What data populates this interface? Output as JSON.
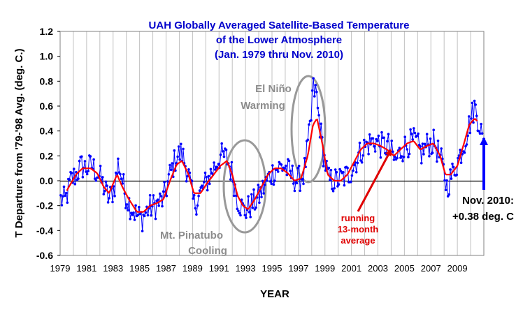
{
  "chart_data": {
    "type": "line",
    "title_lines": [
      "UAH Globally Averaged Satellite-Based Temperature",
      "of the Lower Atmosphere",
      "(Jan. 1979  thru Nov. 2010)"
    ],
    "xlabel": "YEAR",
    "ylabel": "T Departure from '79-'98 Avg. (deg. C.)",
    "ylim": [
      -0.6,
      1.2
    ],
    "yticks": [
      "-0.6",
      "-0.4",
      "-0.2",
      "0.0",
      "0.2",
      "0.4",
      "0.6",
      "0.8",
      "1.0",
      "1.2"
    ],
    "xlim": [
      1979,
      2011
    ],
    "xticks": [
      "1979",
      "1981",
      "1983",
      "1985",
      "1987",
      "1989",
      "1991",
      "1993",
      "1995",
      "1997",
      "1999",
      "2001",
      "2003",
      "2005",
      "2007",
      "2009"
    ],
    "grid": "vertical",
    "series": [
      {
        "type": "monthly",
        "color": "#0000ff",
        "start": "1979-01",
        "keyframes": [
          [
            1979.0,
            -0.15
          ],
          [
            1979.4,
            -0.16
          ],
          [
            1979.8,
            0.0
          ],
          [
            1980.2,
            0.05
          ],
          [
            1980.6,
            0.12
          ],
          [
            1981.0,
            0.1
          ],
          [
            1981.4,
            0.12
          ],
          [
            1981.9,
            0.05
          ],
          [
            1982.3,
            -0.05
          ],
          [
            1982.7,
            -0.15
          ],
          [
            1983.1,
            -0.05
          ],
          [
            1983.4,
            0.15
          ],
          [
            1983.9,
            -0.1
          ],
          [
            1984.3,
            -0.2
          ],
          [
            1984.8,
            -0.28
          ],
          [
            1985.2,
            -0.3
          ],
          [
            1985.7,
            -0.22
          ],
          [
            1986.2,
            -0.2
          ],
          [
            1986.8,
            -0.15
          ],
          [
            1987.3,
            0.05
          ],
          [
            1987.8,
            0.2
          ],
          [
            1988.2,
            0.22
          ],
          [
            1988.7,
            0.05
          ],
          [
            1989.1,
            -0.2
          ],
          [
            1989.6,
            -0.1
          ],
          [
            1990.1,
            0.0
          ],
          [
            1990.6,
            0.1
          ],
          [
            1991.1,
            0.2
          ],
          [
            1991.6,
            0.18
          ],
          [
            1992.0,
            0.05
          ],
          [
            1992.4,
            -0.15
          ],
          [
            1992.9,
            -0.25
          ],
          [
            1993.4,
            -0.2
          ],
          [
            1993.9,
            -0.15
          ],
          [
            1994.4,
            -0.05
          ],
          [
            1994.9,
            0.05
          ],
          [
            1995.4,
            0.1
          ],
          [
            1995.9,
            0.12
          ],
          [
            1996.4,
            0.05
          ],
          [
            1996.9,
            0.0
          ],
          [
            1997.4,
            0.05
          ],
          [
            1997.8,
            0.35
          ],
          [
            1998.1,
            0.62
          ],
          [
            1998.5,
            0.55
          ],
          [
            1998.9,
            0.2
          ],
          [
            1999.3,
            0.0
          ],
          [
            1999.8,
            0.0
          ],
          [
            2000.3,
            0.02
          ],
          [
            2000.8,
            0.05
          ],
          [
            2001.3,
            0.15
          ],
          [
            2001.8,
            0.25
          ],
          [
            2002.3,
            0.3
          ],
          [
            2002.8,
            0.32
          ],
          [
            2003.3,
            0.28
          ],
          [
            2003.8,
            0.28
          ],
          [
            2004.3,
            0.15
          ],
          [
            2004.8,
            0.25
          ],
          [
            2005.3,
            0.3
          ],
          [
            2005.8,
            0.32
          ],
          [
            2006.3,
            0.22
          ],
          [
            2006.8,
            0.3
          ],
          [
            2007.3,
            0.3
          ],
          [
            2007.8,
            0.15
          ],
          [
            2008.2,
            -0.05
          ],
          [
            2008.6,
            0.05
          ],
          [
            2009.0,
            0.15
          ],
          [
            2009.5,
            0.3
          ],
          [
            2009.9,
            0.45
          ],
          [
            2010.3,
            0.6
          ],
          [
            2010.7,
            0.45
          ],
          [
            2010.87,
            0.38
          ]
        ]
      },
      {
        "type": "running_mean",
        "window_months": 13,
        "color": "#ff0000",
        "keyframes": [
          [
            1979.5,
            -0.08
          ],
          [
            1980.2,
            0.05
          ],
          [
            1980.7,
            0.1
          ],
          [
            1981.3,
            0.1
          ],
          [
            1981.8,
            0.06
          ],
          [
            1982.3,
            -0.05
          ],
          [
            1982.7,
            -0.1
          ],
          [
            1983.3,
            0.05
          ],
          [
            1983.7,
            -0.05
          ],
          [
            1984.2,
            -0.15
          ],
          [
            1984.8,
            -0.25
          ],
          [
            1985.3,
            -0.25
          ],
          [
            1985.8,
            -0.2
          ],
          [
            1986.3,
            -0.18
          ],
          [
            1986.8,
            -0.15
          ],
          [
            1987.3,
            0.0
          ],
          [
            1987.8,
            0.13
          ],
          [
            1988.2,
            0.16
          ],
          [
            1988.7,
            0.05
          ],
          [
            1989.1,
            -0.1
          ],
          [
            1989.6,
            -0.1
          ],
          [
            1990.1,
            -0.02
          ],
          [
            1990.6,
            0.05
          ],
          [
            1991.1,
            0.12
          ],
          [
            1991.6,
            0.16
          ],
          [
            1992.0,
            0.05
          ],
          [
            1992.4,
            -0.12
          ],
          [
            1992.8,
            -0.2
          ],
          [
            1993.2,
            -0.23
          ],
          [
            1993.7,
            -0.15
          ],
          [
            1994.2,
            -0.05
          ],
          [
            1994.7,
            0.05
          ],
          [
            1995.2,
            0.1
          ],
          [
            1995.7,
            0.1
          ],
          [
            1996.2,
            0.06
          ],
          [
            1996.7,
            0.0
          ],
          [
            1997.2,
            0.02
          ],
          [
            1997.7,
            0.2
          ],
          [
            1998.1,
            0.45
          ],
          [
            1998.4,
            0.5
          ],
          [
            1998.8,
            0.3
          ],
          [
            1999.2,
            0.05
          ],
          [
            1999.7,
            0.0
          ],
          [
            2000.2,
            0.0
          ],
          [
            2000.7,
            0.05
          ],
          [
            2001.2,
            0.15
          ],
          [
            2001.7,
            0.25
          ],
          [
            2002.2,
            0.3
          ],
          [
            2002.7,
            0.3
          ],
          [
            2003.2,
            0.28
          ],
          [
            2003.7,
            0.25
          ],
          [
            2004.2,
            0.2
          ],
          [
            2004.7,
            0.25
          ],
          [
            2005.2,
            0.3
          ],
          [
            2005.7,
            0.32
          ],
          [
            2006.2,
            0.25
          ],
          [
            2006.7,
            0.28
          ],
          [
            2007.2,
            0.3
          ],
          [
            2007.7,
            0.2
          ],
          [
            2008.1,
            0.05
          ],
          [
            2008.5,
            0.05
          ],
          [
            2009.0,
            0.12
          ],
          [
            2009.5,
            0.3
          ],
          [
            2009.9,
            0.45
          ],
          [
            2010.3,
            0.5
          ],
          [
            2010.5,
            0.48
          ]
        ]
      }
    ],
    "annotations": {
      "el_nino": [
        "El Niño",
        "Warming"
      ],
      "pinatubo": [
        "Mt. Pinatubo",
        "Cooling"
      ],
      "running": [
        "running",
        "13-month",
        "average"
      ],
      "latest": [
        "Nov. 2010:",
        "+0.38 deg. C"
      ]
    }
  }
}
